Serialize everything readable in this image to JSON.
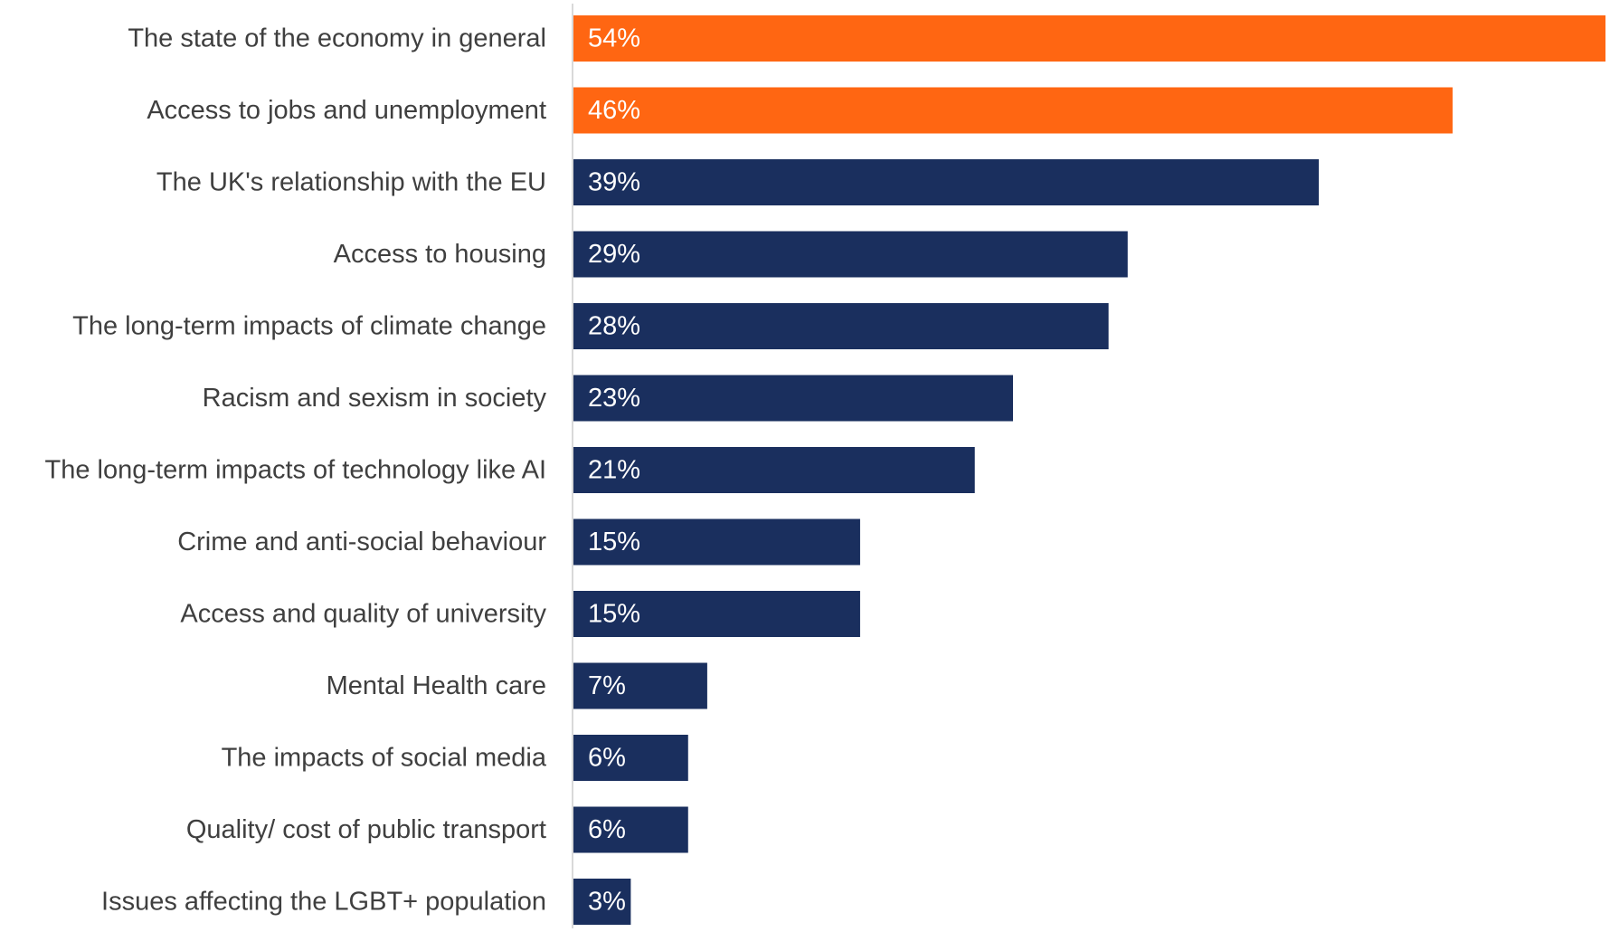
{
  "chart_data": {
    "type": "bar",
    "orientation": "horizontal",
    "categories": [
      "The state of the economy in general",
      "Access to jobs and unemployment",
      "The UK's relationship with the EU",
      "Access to housing",
      "The long-term impacts of climate change",
      "Racism and sexism in society",
      "The long-term impacts of technology like AI",
      "Crime and anti-social behaviour",
      "Access and quality of university",
      "Mental Health care",
      "The impacts of social media",
      "Quality/ cost of public transport",
      "Issues affecting the LGBT+ population"
    ],
    "values": [
      54,
      46,
      39,
      29,
      28,
      23,
      21,
      15,
      15,
      7,
      6,
      6,
      3
    ],
    "value_labels": [
      "54%",
      "46%",
      "39%",
      "29%",
      "28%",
      "23%",
      "21%",
      "15%",
      "15%",
      "7%",
      "6%",
      "6%",
      "3%"
    ],
    "highlighted": [
      true,
      true,
      false,
      false,
      false,
      false,
      false,
      false,
      false,
      false,
      false,
      false,
      false
    ],
    "value_unit": "%",
    "xlim": [
      0,
      54
    ],
    "grid": false,
    "legend": "none",
    "colors": {
      "highlight": "#FF6612",
      "default": "#1A2F5E",
      "axis_line": "#D9D9D9",
      "category_text": "#3F3F3F",
      "value_text": "#FFFFFF"
    }
  }
}
